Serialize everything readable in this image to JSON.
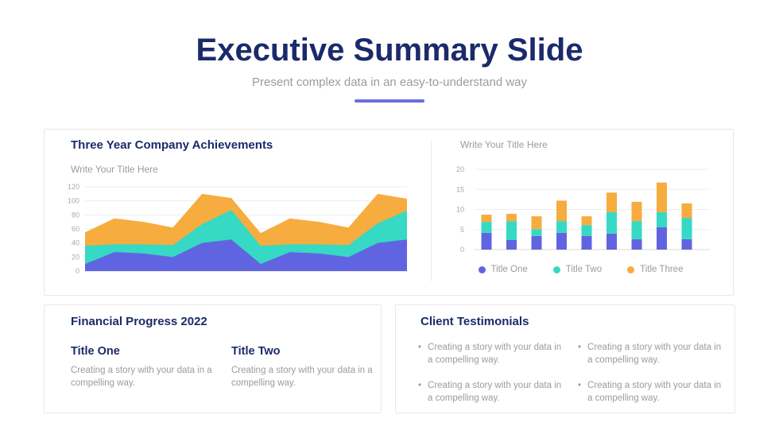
{
  "slide": {
    "title": "Executive Summary Slide",
    "subtitle": "Present complex data in an easy-to-understand way"
  },
  "top_panel": {
    "left": {
      "heading": "Three Year Company Achievements",
      "subheading": "Write Your Title Here"
    },
    "right": {
      "heading": "Write Your Title Here"
    }
  },
  "legend": {
    "items": [
      {
        "label": "Title One",
        "color": "#6164E1"
      },
      {
        "label": "Title Two",
        "color": "#35D9C4"
      },
      {
        "label": "Title Three",
        "color": "#F6AC3E"
      }
    ]
  },
  "financial": {
    "heading": "Financial Progress 2022",
    "items": [
      {
        "title": "Title One",
        "body": "Creating a story with your data in a compelling way."
      },
      {
        "title": "Title Two",
        "body": "Creating a story with your data in a compelling way."
      }
    ]
  },
  "testimonials": {
    "heading": "Client Testimonials",
    "bullets": [
      "Creating a story with your data in a compelling way.",
      "Creating a story with your data in a compelling way.",
      "Creating a story with your data in a compelling way.",
      "Creating a story with your data in a compelling way."
    ]
  },
  "chart_data": [
    {
      "type": "area",
      "stacked": true,
      "title": "Three Year Company Achievements",
      "subtitle": "Write Your Title Here",
      "x": [
        1,
        2,
        3,
        4,
        5,
        6,
        7,
        8,
        9,
        10,
        11,
        12
      ],
      "series": [
        {
          "name": "Title One",
          "color": "#6164E1",
          "values": [
            10,
            27,
            25,
            20,
            40,
            45,
            10,
            27,
            25,
            20,
            40,
            45
          ]
        },
        {
          "name": "Title Two",
          "color": "#35D9C4",
          "values": [
            26,
            11,
            13,
            17,
            27,
            42,
            26,
            11,
            13,
            17,
            28,
            41
          ]
        },
        {
          "name": "Title Three",
          "color": "#F6AC3E",
          "values": [
            19,
            37,
            32,
            25,
            43,
            17,
            18,
            37,
            32,
            25,
            42,
            17
          ]
        }
      ],
      "ylim": [
        0,
        120
      ],
      "yticks": [
        0,
        20,
        40,
        60,
        80,
        100,
        120
      ],
      "grid": true,
      "legend": false
    },
    {
      "type": "bar",
      "stacked": true,
      "title": "Write Your Title Here",
      "categories": [
        "",
        "",
        "",
        "",
        "",
        "",
        "",
        "",
        ""
      ],
      "series": [
        {
          "name": "Title One",
          "color": "#6164E1",
          "values": [
            4.2,
            2.4,
            3.4,
            4.2,
            3.4,
            4.0,
            2.6,
            5.6,
            2.6
          ]
        },
        {
          "name": "Title Two",
          "color": "#35D9C4",
          "values": [
            2.7,
            4.7,
            1.7,
            2.9,
            2.7,
            5.3,
            4.5,
            3.7,
            5.3
          ]
        },
        {
          "name": "Title Three",
          "color": "#F6AC3E",
          "values": [
            1.8,
            1.8,
            3.2,
            5.1,
            2.2,
            4.9,
            4.8,
            7.4,
            3.6
          ]
        }
      ],
      "ylim": [
        0,
        20
      ],
      "yticks": [
        0,
        5,
        10,
        15,
        20
      ],
      "grid": true,
      "legend_position": "bottom"
    }
  ],
  "colors": {
    "navy": "#1B2A6B",
    "text_gray": "#9B9B9B",
    "accent": "#6A6EE1",
    "panel_border": "#E8E8E8",
    "grid_line": "#EDEDED",
    "axis_line": "#D9D9D9"
  }
}
